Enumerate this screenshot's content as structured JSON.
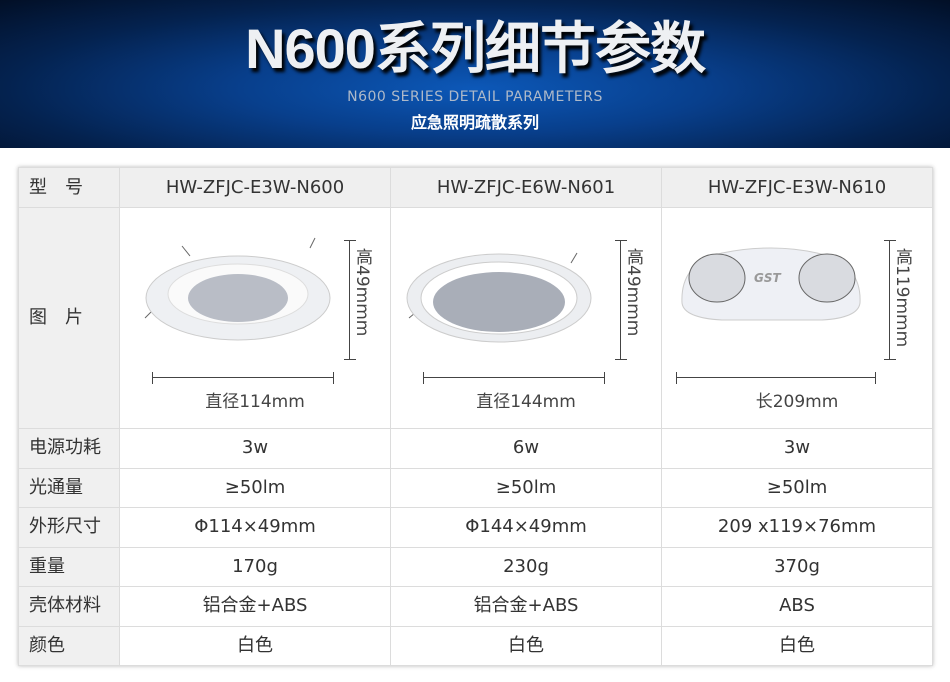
{
  "banner": {
    "title": "N600系列细节参数",
    "subtitle": "N600 SERIES DETAIL PARAMETERS",
    "tagline": "应急照明疏散系列"
  },
  "table": {
    "model_label": "型　号",
    "models": [
      "HW-ZFJC-E3W-N600",
      "HW-ZFJC-E6W-N601",
      "HW-ZFJC-E3W-N610"
    ],
    "picture_label": "图　片",
    "pictures": [
      {
        "width_caption": "直径114mm",
        "height_caption": "高49mmm"
      },
      {
        "width_caption": "直径144mm",
        "height_caption": "高49mmm"
      },
      {
        "width_caption": "长209mm",
        "height_caption": "高119mmm",
        "logo": "GST"
      }
    ],
    "rows": [
      {
        "label": "电源功耗",
        "values": [
          "3w",
          "6w",
          "3w"
        ]
      },
      {
        "label": "光通量",
        "values": [
          "≥50lm",
          "≥50lm",
          "≥50lm"
        ]
      },
      {
        "label": "外形尺寸",
        "values": [
          "Φ114×49mm",
          "Φ144×49mm",
          "209 x119×76mm"
        ]
      },
      {
        "label": "重量",
        "values": [
          "170g",
          "230g",
          "370g"
        ]
      },
      {
        "label": "壳体材料",
        "values": [
          "铝合金+ABS",
          "铝合金+ABS",
          "ABS"
        ]
      },
      {
        "label": "颜色",
        "values": [
          "白色",
          "白色",
          "白色"
        ]
      }
    ]
  }
}
